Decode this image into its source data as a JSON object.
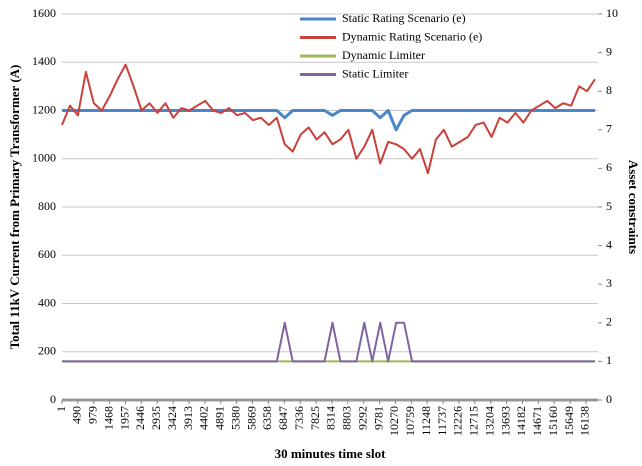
{
  "chart_data": {
    "type": "line",
    "ylabel": "Total 11kV Current  from Primary Transformer (A)",
    "y2label": "Asset constraints",
    "xlabel": "30 minutes time slot",
    "xlim": [
      1,
      16508
    ],
    "xticks": [
      1,
      490,
      979,
      1468,
      1957,
      2446,
      2935,
      3424,
      3913,
      4402,
      4891,
      5380,
      5869,
      6358,
      6847,
      7336,
      7825,
      8314,
      8803,
      9292,
      9781,
      10270,
      10759,
      11248,
      11737,
      12226,
      12715,
      13204,
      13693,
      14182,
      14671,
      15160,
      15649,
      16138
    ],
    "ylim": [
      0,
      1600
    ],
    "yticks": [
      0,
      200,
      400,
      600,
      800,
      1000,
      1200,
      1400,
      1600
    ],
    "y2lim": [
      0,
      10
    ],
    "y2ticks": [
      0,
      1,
      2,
      3,
      4,
      5,
      6,
      7,
      8,
      9,
      10
    ],
    "grid": true,
    "legend": "upper center",
    "x": [
      1,
      246,
      491,
      736,
      981,
      1226,
      1471,
      1716,
      1961,
      2206,
      2451,
      2696,
      2941,
      3186,
      3431,
      3676,
      3921,
      4166,
      4411,
      4656,
      4901,
      5146,
      5391,
      5636,
      5881,
      6126,
      6371,
      6616,
      6861,
      7106,
      7351,
      7596,
      7841,
      8086,
      8331,
      8576,
      8821,
      9066,
      9311,
      9556,
      9801,
      10046,
      10291,
      10536,
      10781,
      11026,
      11271,
      11516,
      11761,
      12006,
      12251,
      12496,
      12741,
      12986,
      13231,
      13476,
      13721,
      13966,
      14211,
      14456,
      14701,
      14946,
      15191,
      15436,
      15681,
      15926,
      16171,
      16416
    ],
    "series": [
      {
        "name": "Static Rating Scenario (e)",
        "color": "#4a86c8",
        "width": 3,
        "values": [
          1200,
          1200,
          1200,
          1200,
          1200,
          1200,
          1200,
          1200,
          1200,
          1200,
          1200,
          1200,
          1200,
          1200,
          1200,
          1200,
          1200,
          1200,
          1200,
          1200,
          1200,
          1200,
          1200,
          1200,
          1200,
          1200,
          1200,
          1200,
          1170,
          1200,
          1200,
          1200,
          1200,
          1200,
          1180,
          1200,
          1200,
          1200,
          1200,
          1200,
          1170,
          1200,
          1120,
          1180,
          1200,
          1200,
          1200,
          1200,
          1200,
          1200,
          1200,
          1200,
          1200,
          1200,
          1200,
          1200,
          1200,
          1200,
          1200,
          1200,
          1200,
          1200,
          1200,
          1200,
          1200,
          1200,
          1200,
          1200
        ]
      },
      {
        "name": "Dynamic Rating Scenario (e)",
        "color": "#c8413b",
        "width": 2,
        "values": [
          1140,
          1220,
          1180,
          1360,
          1230,
          1200,
          1260,
          1330,
          1390,
          1300,
          1200,
          1230,
          1190,
          1230,
          1170,
          1210,
          1200,
          1220,
          1240,
          1200,
          1190,
          1210,
          1180,
          1190,
          1160,
          1170,
          1140,
          1170,
          1060,
          1030,
          1100,
          1130,
          1080,
          1110,
          1060,
          1080,
          1120,
          1000,
          1050,
          1120,
          980,
          1070,
          1060,
          1040,
          1000,
          1040,
          940,
          1080,
          1120,
          1050,
          1070,
          1090,
          1140,
          1150,
          1090,
          1170,
          1150,
          1190,
          1150,
          1200,
          1220,
          1240,
          1210,
          1230,
          1220,
          1300,
          1280,
          1330
        ]
      },
      {
        "name": "Dynamic Limiter",
        "color": "#9bbb59",
        "width": 2,
        "axis": "y2",
        "values": [
          1,
          1,
          1,
          1,
          1,
          1,
          1,
          1,
          1,
          1,
          1,
          1,
          1,
          1,
          1,
          1,
          1,
          1,
          1,
          1,
          1,
          1,
          1,
          1,
          1,
          1,
          1,
          1,
          1,
          1,
          1,
          1,
          1,
          1,
          1,
          1,
          1,
          1,
          1,
          1,
          1,
          1,
          1,
          1,
          1,
          1,
          1,
          1,
          1,
          1,
          1,
          1,
          1,
          1,
          1,
          1,
          1,
          1,
          1,
          1,
          1,
          1,
          1,
          1,
          1,
          1,
          1,
          1
        ]
      },
      {
        "name": "Static Limiter",
        "color": "#8064a2",
        "width": 2,
        "axis": "y2",
        "values": [
          1,
          1,
          1,
          1,
          1,
          1,
          1,
          1,
          1,
          1,
          1,
          1,
          1,
          1,
          1,
          1,
          1,
          1,
          1,
          1,
          1,
          1,
          1,
          1,
          1,
          1,
          1,
          1,
          2,
          1,
          1,
          1,
          1,
          1,
          2,
          1,
          1,
          1,
          2,
          1,
          2,
          1,
          2,
          2,
          1,
          1,
          1,
          1,
          1,
          1,
          1,
          1,
          1,
          1,
          1,
          1,
          1,
          1,
          1,
          1,
          1,
          1,
          1,
          1,
          1,
          1,
          1,
          1
        ]
      }
    ]
  }
}
